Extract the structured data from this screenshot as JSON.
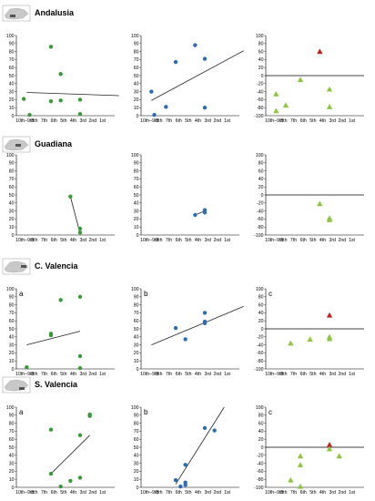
{
  "colors": {
    "green_dot": "#3a9a3a",
    "blue_dot": "#2a6db5",
    "triangle_green": "#8cc63f",
    "triangle_red": "#c0201e",
    "map_grey": "#c8c8c8",
    "axis": "#000000"
  },
  "x_tick_labels": [
    "10th–9th",
    "8th",
    "7th",
    "6th",
    "5th",
    "4th",
    "3rd",
    "2nd",
    "1st"
  ],
  "chart_data": [
    {
      "region": "Andalusia",
      "panels": [
        {
          "label": "",
          "type": "scatter",
          "ylim": [
            0,
            100
          ],
          "ytick_step": 10,
          "points": [
            [
              0.2,
              21
            ],
            [
              0.8,
              1
            ],
            [
              3,
              86
            ],
            [
              3,
              18
            ],
            [
              4,
              52
            ],
            [
              4,
              19
            ],
            [
              6,
              20
            ],
            [
              6,
              2
            ]
          ],
          "trend": [
            [
              0.5,
              29
            ],
            [
              10,
              25
            ]
          ]
        },
        {
          "label": "",
          "type": "scatter",
          "ylim": [
            0,
            100
          ],
          "ytick_step": 10,
          "points": [
            [
              0.5,
              30
            ],
            [
              0.8,
              1
            ],
            [
              2,
              11
            ],
            [
              3,
              67
            ],
            [
              5,
              88
            ],
            [
              6,
              71
            ],
            [
              6,
              10
            ]
          ],
          "trend": [
            [
              0.5,
              19
            ],
            [
              10,
              81
            ]
          ]
        },
        {
          "label": "",
          "type": "triangles",
          "ylim": [
            -100,
            100
          ],
          "ytick_step": 20,
          "points": [
            [
              0.5,
              -46
            ],
            [
              0.5,
              -88
            ],
            [
              1.5,
              -74
            ],
            [
              3,
              -10
            ],
            [
              5,
              60
            ],
            [
              6,
              -34
            ],
            [
              6,
              -78
            ]
          ],
          "red_indices": [
            4
          ],
          "zero_line": true
        }
      ]
    },
    {
      "region": "Guadiana",
      "panels": [
        {
          "label": "",
          "type": "scatter",
          "ylim": [
            0,
            100
          ],
          "ytick_step": 10,
          "points": [
            [
              5,
              48
            ],
            [
              6,
              8
            ],
            [
              6,
              3
            ]
          ],
          "trend": [
            [
              5,
              48
            ],
            [
              6,
              2
            ]
          ]
        },
        {
          "label": "",
          "type": "scatter",
          "ylim": [
            0,
            100
          ],
          "ytick_step": 10,
          "points": [
            [
              5,
              25
            ],
            [
              6,
              28
            ],
            [
              6,
              31
            ]
          ],
          "trend": [
            [
              5,
              25
            ],
            [
              6,
              30
            ]
          ]
        },
        {
          "label": "",
          "type": "triangles",
          "ylim": [
            -100,
            100
          ],
          "ytick_step": 20,
          "points": [
            [
              5,
              -22
            ],
            [
              6,
              -58
            ],
            [
              6,
              -62
            ]
          ],
          "red_indices": [],
          "zero_line": true
        }
      ]
    },
    {
      "region": "C. Valencia",
      "panels": [
        {
          "label": "a",
          "type": "scatter",
          "ylim": [
            0,
            100
          ],
          "ytick_step": 10,
          "points": [
            [
              0.5,
              2
            ],
            [
              3,
              44
            ],
            [
              3,
              42
            ],
            [
              4,
              86
            ],
            [
              6,
              90
            ],
            [
              6,
              16
            ],
            [
              6,
              1
            ]
          ],
          "trend": [
            [
              0.5,
              30
            ],
            [
              6,
              47
            ]
          ]
        },
        {
          "label": "b",
          "type": "scatter",
          "ylim": [
            0,
            100
          ],
          "ytick_step": 10,
          "points": [
            [
              3,
              51
            ],
            [
              4,
              37
            ],
            [
              6,
              70
            ],
            [
              6,
              57
            ],
            [
              6,
              59
            ]
          ],
          "trend": [
            [
              0.5,
              30
            ],
            [
              10,
              78
            ]
          ]
        },
        {
          "label": "c",
          "type": "triangles",
          "ylim": [
            -100,
            100
          ],
          "ytick_step": 20,
          "points": [
            [
              2,
              -36
            ],
            [
              4,
              -26
            ],
            [
              6,
              34
            ],
            [
              6,
              -20
            ],
            [
              6,
              -25
            ]
          ],
          "red_indices": [
            2
          ],
          "zero_line": true
        }
      ]
    },
    {
      "region": "S. Valencia",
      "panels": [
        {
          "label": "a",
          "type": "scatter",
          "ylim": [
            0,
            100
          ],
          "ytick_step": 10,
          "points": [
            [
              3,
              72
            ],
            [
              3,
              17
            ],
            [
              4,
              1
            ],
            [
              5,
              8
            ],
            [
              6,
              65
            ],
            [
              6,
              12
            ],
            [
              7,
              89
            ],
            [
              7,
              91
            ]
          ],
          "trend": [
            [
              3,
              17
            ],
            [
              7,
              65
            ]
          ]
        },
        {
          "label": "b",
          "type": "scatter",
          "ylim": [
            0,
            100
          ],
          "ytick_step": 10,
          "points": [
            [
              3,
              9
            ],
            [
              3.5,
              1
            ],
            [
              4,
              28
            ],
            [
              4,
              6
            ],
            [
              4,
              3
            ],
            [
              6,
              74
            ],
            [
              7,
              71
            ]
          ],
          "trend": [
            [
              3,
              4
            ],
            [
              8,
              100
            ]
          ]
        },
        {
          "label": "c",
          "type": "triangles",
          "ylim": [
            -100,
            100
          ],
          "ytick_step": 20,
          "points": [
            [
              2,
              -82
            ],
            [
              3,
              -22
            ],
            [
              3,
              -44
            ],
            [
              3,
              -98
            ],
            [
              6,
              6
            ],
            [
              6,
              -4
            ],
            [
              7,
              -22
            ]
          ],
          "red_indices": [
            4
          ],
          "zero_line": true
        }
      ]
    }
  ]
}
